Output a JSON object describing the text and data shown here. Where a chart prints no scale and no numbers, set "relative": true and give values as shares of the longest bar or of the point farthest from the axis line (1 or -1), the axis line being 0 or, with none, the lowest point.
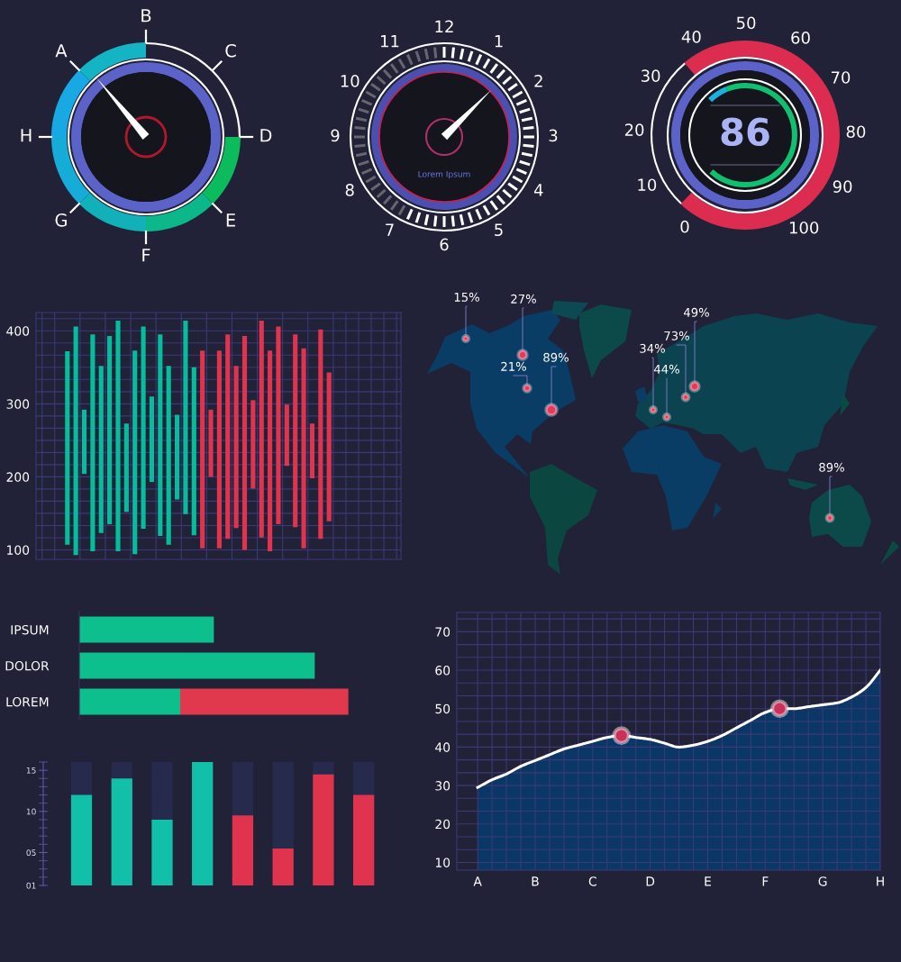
{
  "chart_data": [
    {
      "type": "other",
      "categories": [
        "A",
        "B",
        "C",
        "D",
        "E",
        "F",
        "G",
        "H"
      ]
    },
    {
      "type": "other",
      "categories": [
        "12",
        "1",
        "2",
        "3",
        "4",
        "5",
        "6",
        "7",
        "8",
        "9",
        "10",
        "11"
      ],
      "annotations": [
        "Lorem Ipsum"
      ]
    },
    {
      "type": "other",
      "categories": [
        "0",
        "10",
        "20",
        "30",
        "40",
        "50",
        "60",
        "70",
        "80",
        "90",
        "100"
      ],
      "annotations": [
        "86"
      ]
    },
    {
      "type": "bar",
      "categories": [
        null,
        null,
        null,
        null,
        null,
        null,
        null,
        null,
        null,
        null,
        null,
        null,
        null,
        null,
        null,
        null,
        null,
        null,
        null,
        null,
        null,
        null,
        null,
        null,
        null,
        null,
        null,
        null,
        null,
        null,
        null,
        null
      ],
      "base": [
        107,
        93,
        204,
        98,
        123,
        135,
        98,
        152,
        94,
        129,
        193,
        119,
        107,
        169,
        149,
        120,
        102,
        200,
        102,
        115,
        130,
        100,
        184,
        117,
        98,
        135,
        215,
        131,
        102,
        198,
        115,
        139
      ],
      "values": [
        265,
        313,
        88,
        297,
        229,
        258,
        316,
        121,
        279,
        277,
        117,
        276,
        245,
        116,
        265,
        230,
        271,
        92,
        271,
        280,
        222,
        293,
        121,
        297,
        275,
        271,
        84,
        264,
        274,
        75,
        287,
        204
      ],
      "colors": [
        "#06bc9c",
        "#06bc9c",
        "#06bc9c",
        "#06bc9c",
        "#06bc9c",
        "#06bc9c",
        "#06bc9c",
        "#06bc9c",
        "#06bc9c",
        "#06bc9c",
        "#06bc9c",
        "#06bc9c",
        "#06bc9c",
        "#06bc9c",
        "#06bc9c",
        "#06bc9c",
        "#e0344e",
        "#e0344e",
        "#e0344e",
        "#e0344e",
        "#e0344e",
        "#e0344e",
        "#e0344e",
        "#e0344e",
        "#e0344e",
        "#e0344e",
        "#e0344e",
        "#e0344e",
        "#e0344e",
        "#e0344e",
        "#e0344e",
        "#e0344e"
      ],
      "ylim": [
        87,
        425
      ],
      "yticks": [
        100,
        200,
        300,
        400
      ],
      "grid": true,
      "tick_labels": "y"
    },
    {
      "type": "other",
      "annotations": [
        "15%",
        "27%",
        "21%",
        "89%",
        "34%",
        "44%",
        "73%",
        "49%",
        "89%"
      ],
      "color": "#e8385a"
    },
    {
      "type": "bar",
      "orientation": "horizontal",
      "stacked": true,
      "relative": true,
      "categories": [
        "IPSUM",
        "DOLOR",
        "LOREM"
      ],
      "series": [
        {
          "color": "#0dbf8c",
          "values": [
            0.5,
            0.875,
            0.375
          ]
        },
        {
          "color": "#e0384c",
          "values": [
            null,
            null,
            0.625
          ]
        }
      ]
    },
    {
      "type": "area",
      "categories": [
        "A",
        null,
        null,
        null,
        "B",
        null,
        null,
        null,
        "C",
        null,
        null,
        null,
        "D",
        null,
        null,
        null,
        "E",
        null,
        null,
        null,
        "F",
        null,
        null,
        null,
        "G",
        null,
        null,
        null,
        "H"
      ],
      "ylim": [
        8,
        75
      ],
      "yticks": [
        10,
        20,
        30,
        40,
        50,
        60,
        70
      ],
      "grid": true,
      "series": [
        {
          "type": "area",
          "color": "#0a3766",
          "values": [
            29.5,
            31.5,
            33,
            35,
            36.5,
            38,
            39.5,
            40.5,
            41.5,
            42.5,
            43,
            42.5,
            42,
            41,
            40,
            40.5,
            41.5,
            43,
            45,
            47,
            49,
            50,
            50,
            50.5,
            51,
            51.5,
            53,
            55.5,
            60
          ]
        },
        {
          "type": "scatter",
          "color": "#c8325a",
          "marker": "circle",
          "values": [
            null,
            null,
            null,
            null,
            null,
            null,
            null,
            null,
            null,
            null,
            43,
            null,
            null,
            null,
            null,
            null,
            null,
            null,
            null,
            null,
            null,
            50,
            null,
            null,
            null,
            null,
            null,
            null,
            null
          ]
        }
      ]
    },
    {
      "type": "bar",
      "categories": [
        null,
        null,
        null,
        null,
        null,
        null,
        null,
        null
      ],
      "values": [
        12,
        14,
        9,
        16,
        9.5,
        5.5,
        14.5,
        12
      ],
      "colors": [
        "#12bfa8",
        "#12bfa8",
        "#12bfa8",
        "#12bfa8",
        "#e0344e",
        "#e0344e",
        "#e0344e",
        "#e0344e"
      ],
      "ylim": [
        1,
        16
      ],
      "yticks": [
        {
          "value": 1,
          "label": "01"
        },
        {
          "value": 5,
          "label": "05"
        },
        10,
        15
      ],
      "tick_labels": "y"
    }
  ]
}
